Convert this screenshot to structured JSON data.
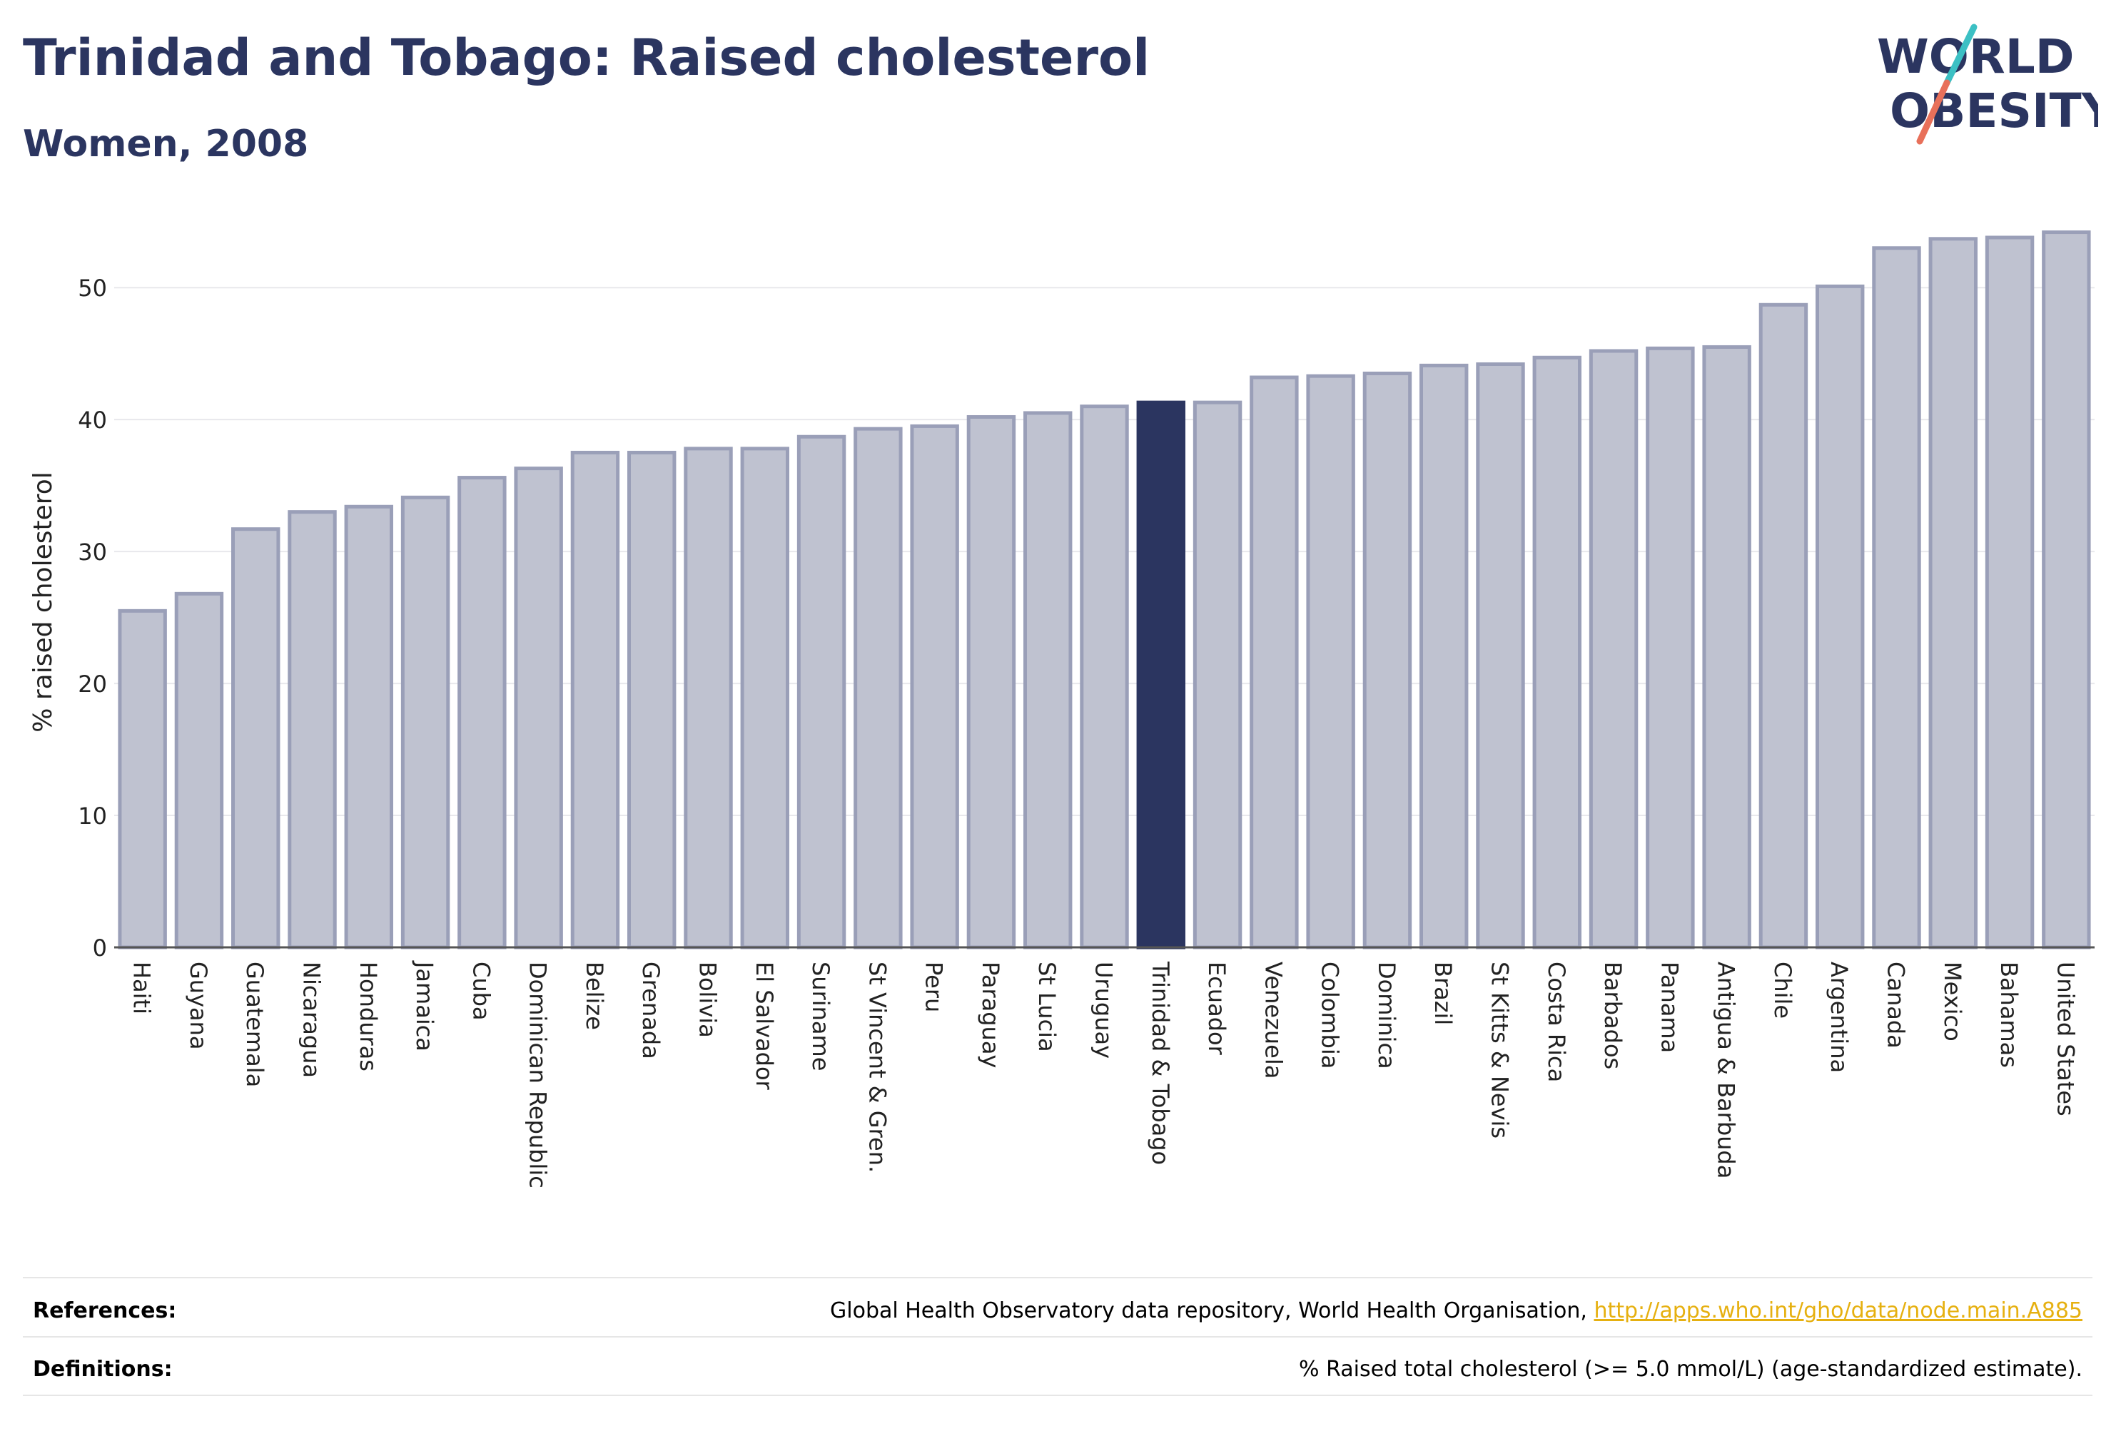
{
  "header": {
    "title": "Trinidad and Tobago: Raised cholesterol",
    "subtitle": "Women, 2008"
  },
  "logo": {
    "line1": "WORLD",
    "line2": "OBESITY",
    "text_color": "#2b3560",
    "slash_teal": "#3cc0c4",
    "slash_red": "#e8705a"
  },
  "colors": {
    "bar_fill": "#bfc2d0",
    "bar_stroke": "#9a9fb8",
    "highlight_fill": "#2b3560",
    "grid": "#e8e8ec",
    "axis_text": "#222222"
  },
  "chart_data": {
    "type": "bar",
    "ylabel": "% raised cholesterol",
    "ylim": [
      0,
      54.5
    ],
    "yticks": [
      0,
      10,
      20,
      30,
      40,
      50
    ],
    "grid": true,
    "highlight": "Trinidad & Tobago",
    "categories": [
      "Haiti",
      "Guyana",
      "Guatemala",
      "Nicaragua",
      "Honduras",
      "Jamaica",
      "Cuba",
      "Dominican Republic",
      "Belize",
      "Grenada",
      "Bolivia",
      "El Salvador",
      "Suriname",
      "St Vincent & Gren.",
      "Peru",
      "Paraguay",
      "St Lucia",
      "Uruguay",
      "Trinidad & Tobago",
      "Ecuador",
      "Venezuela",
      "Colombia",
      "Dominica",
      "Brazil",
      "St Kitts & Nevis",
      "Costa Rica",
      "Barbados",
      "Panama",
      "Antigua & Barbuda",
      "Chile",
      "Argentina",
      "Canada",
      "Mexico",
      "Bahamas",
      "United States"
    ],
    "values": [
      25.5,
      26.8,
      31.7,
      33.0,
      33.4,
      34.1,
      35.6,
      36.3,
      37.5,
      37.5,
      37.8,
      37.8,
      38.7,
      39.3,
      39.5,
      40.2,
      40.5,
      41.0,
      41.3,
      41.3,
      43.2,
      43.3,
      43.5,
      44.1,
      44.2,
      44.7,
      45.2,
      45.4,
      45.5,
      48.7,
      50.1,
      53.0,
      53.7,
      53.8,
      54.2
    ]
  },
  "footer": {
    "references_label": "References:",
    "references_text": "Global Health Observatory data repository, World Health Organisation, ",
    "references_link": "http://apps.who.int/gho/data/node.main.A885",
    "definitions_label": "Definitions:",
    "definitions_text": "% Raised total cholesterol (>= 5.0 mmol/L) (age-standardized estimate)."
  }
}
